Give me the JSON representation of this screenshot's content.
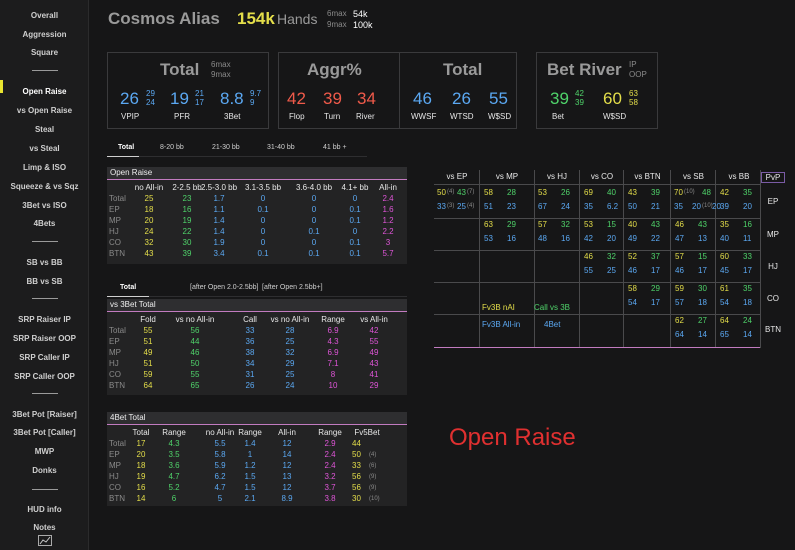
{
  "sidebar": {
    "items": [
      "Overall",
      "Aggression",
      "Square",
      "Open Raise",
      "vs Open Raise",
      "Steal",
      "vs Steal",
      "Limp & ISO",
      "Squeeze & vs Sqz",
      "3Bet vs ISO",
      "4Bets",
      "SB vs BB",
      "BB vs SB",
      "SRP Raiser IP",
      "SRP Raiser OOP",
      "SRP Caller IP",
      "SRP Caller OOP",
      "3Bet Pot [Raiser]",
      "3Bet Pot [Caller]",
      "MWP",
      "Donks",
      "HUD info",
      "Notes"
    ],
    "active": "Open Raise",
    "chart_icon": "line-chart-icon"
  },
  "header": {
    "player": "Cosmos Alias",
    "hands_value": "154k",
    "hands_label": "Hands",
    "sixmax_label": "6max",
    "sixmax_value": "54k",
    "ninemax_label": "9max",
    "ninemax_value": "100k"
  },
  "boxes": {
    "total1": {
      "title": "Total",
      "sub1": "6max",
      "sub2": "9max",
      "vpip": {
        "big": "26",
        "s1": "29",
        "s2": "24",
        "label": "VPIP"
      },
      "pfr": {
        "big": "19",
        "s1": "21",
        "s2": "17",
        "label": "PFR"
      },
      "threebet": {
        "big": "8.8",
        "s1": "9.7",
        "s2": "9",
        "label": "3Bet"
      }
    },
    "aggr": {
      "title": "Aggr%",
      "flop": {
        "big": "42",
        "label": "Flop"
      },
      "turn": {
        "big": "39",
        "label": "Turn"
      },
      "river": {
        "big": "34",
        "label": "River"
      }
    },
    "total2": {
      "title": "Total",
      "wwsf": {
        "big": "46",
        "label": "WWSF"
      },
      "wtsd": {
        "big": "26",
        "label": "WTSD"
      },
      "wsd": {
        "big": "55",
        "label": "W$SD"
      }
    },
    "betriver": {
      "title": "Bet River",
      "sub1": "IP",
      "sub2": "OOP",
      "bet": {
        "big": "39",
        "s1": "42",
        "s2": "39",
        "label": "Bet"
      },
      "wsd": {
        "big": "60",
        "s1": "63",
        "s2": "58",
        "label": "W$SD"
      }
    }
  },
  "tabs1": [
    "Total",
    "8-20 bb",
    "21-30 bb",
    "31-40 bb",
    "41 bb +"
  ],
  "open_raise": {
    "title": "Open Raise",
    "headers": [
      "no All-in",
      "2-2.5 bb",
      "2.5-3.0 bb",
      "3.1-3.5 bb",
      "3.6-4.0 bb",
      "4.1+ bb",
      "All-in"
    ],
    "rows": [
      {
        "pos": "Total",
        "v": [
          "25",
          "23",
          "1.7",
          "0",
          "0",
          "0",
          "2.4"
        ]
      },
      {
        "pos": "EP",
        "v": [
          "18",
          "16",
          "1.1",
          "0.1",
          "0",
          "0.1",
          "1.6"
        ]
      },
      {
        "pos": "MP",
        "v": [
          "20",
          "19",
          "1.4",
          "0",
          "0",
          "0.1",
          "1.2"
        ]
      },
      {
        "pos": "HJ",
        "v": [
          "24",
          "22",
          "1.4",
          "0",
          "0.1",
          "0",
          "2.2"
        ]
      },
      {
        "pos": "CO",
        "v": [
          "32",
          "30",
          "1.9",
          "0",
          "0",
          "0.1",
          "3"
        ]
      },
      {
        "pos": "BTN",
        "v": [
          "43",
          "39",
          "3.4",
          "0.1",
          "0.1",
          "0.1",
          "5.7"
        ]
      }
    ]
  },
  "tabs2": [
    "Total",
    "[after Open 2.0-2.5bb]",
    "[after Open 2.5bb+]"
  ],
  "vs3bet": {
    "title": "vs 3Bet Total",
    "headers": [
      "Fold",
      "vs no All-in",
      "Call",
      "vs no All-in",
      "Range",
      "vs All-in"
    ],
    "rows": [
      {
        "pos": "Total",
        "v": [
          "55",
          "56",
          "33",
          "28",
          "6.9",
          "42"
        ]
      },
      {
        "pos": "EP",
        "v": [
          "51",
          "44",
          "36",
          "25",
          "4.3",
          "55"
        ]
      },
      {
        "pos": "MP",
        "v": [
          "49",
          "46",
          "38",
          "32",
          "6.9",
          "49"
        ]
      },
      {
        "pos": "HJ",
        "v": [
          "51",
          "50",
          "34",
          "29",
          "7.1",
          "43"
        ]
      },
      {
        "pos": "CO",
        "v": [
          "59",
          "55",
          "31",
          "25",
          "8",
          "41"
        ]
      },
      {
        "pos": "BTN",
        "v": [
          "64",
          "65",
          "26",
          "24",
          "10",
          "29"
        ]
      }
    ]
  },
  "fourbet": {
    "title": "4Bet Total",
    "headers": [
      "Total",
      "Range",
      "no All-in",
      "Range",
      "All-in",
      "Range",
      "Fv5Bet"
    ],
    "rows": [
      {
        "pos": "Total",
        "v": [
          "17",
          "4.3",
          "5.5",
          "1.4",
          "12",
          "2.9",
          "44",
          ""
        ]
      },
      {
        "pos": "EP",
        "v": [
          "20",
          "3.5",
          "5.8",
          "1",
          "14",
          "2.4",
          "50",
          "(4)"
        ]
      },
      {
        "pos": "MP",
        "v": [
          "18",
          "3.6",
          "5.9",
          "1.2",
          "12",
          "2.4",
          "33",
          "(6)"
        ]
      },
      {
        "pos": "HJ",
        "v": [
          "19",
          "4.7",
          "6.2",
          "1.5",
          "13",
          "3.2",
          "56",
          "(9)"
        ]
      },
      {
        "pos": "CO",
        "v": [
          "16",
          "5.2",
          "4.7",
          "1.5",
          "12",
          "3.7",
          "56",
          "(9)"
        ]
      },
      {
        "pos": "BTN",
        "v": [
          "14",
          "6",
          "5",
          "2.1",
          "8.9",
          "3.8",
          "30",
          "(10)"
        ]
      }
    ]
  },
  "pvp": {
    "cols": [
      "vs EP",
      "vs MP",
      "vs HJ",
      "vs CO",
      "vs BTN",
      "vs SB",
      "vs BB"
    ],
    "corner": "PvP",
    "rows": [
      "EP",
      "MP",
      "HJ",
      "CO",
      "BTN"
    ],
    "cells": {
      "ep_ep": [
        "50",
        "(4)",
        "43",
        "(7)",
        "33",
        "(3)",
        "25",
        "(4)"
      ],
      "ep_mp": [
        "58",
        "28",
        "51",
        "23"
      ],
      "ep_hj": [
        "53",
        "26",
        "67",
        "24"
      ],
      "ep_co": [
        "69",
        "40",
        "35",
        "6.2"
      ],
      "ep_btn": [
        "43",
        "39",
        "50",
        "21"
      ],
      "ep_sb": [
        "70",
        "(10)",
        "48",
        "35",
        "20",
        "(10)",
        "20"
      ],
      "ep_bb": [
        "42",
        "35",
        "39",
        "20"
      ],
      "mp_mp": [
        "63",
        "29",
        "53",
        "16"
      ],
      "mp_hj": [
        "57",
        "32",
        "48",
        "16"
      ],
      "mp_co": [
        "53",
        "15",
        "42",
        "20"
      ],
      "mp_btn": [
        "40",
        "43",
        "49",
        "22"
      ],
      "mp_sb": [
        "46",
        "43",
        "47",
        "13"
      ],
      "mp_bb": [
        "35",
        "16",
        "40",
        "11"
      ],
      "hj_co": [
        "46",
        "32",
        "55",
        "25"
      ],
      "hj_btn": [
        "52",
        "37",
        "46",
        "17"
      ],
      "hj_sb": [
        "57",
        "15",
        "46",
        "17"
      ],
      "hj_bb": [
        "60",
        "33",
        "45",
        "17"
      ],
      "co_btn": [
        "58",
        "29",
        "54",
        "17"
      ],
      "co_sb": [
        "59",
        "30",
        "57",
        "18"
      ],
      "co_bb": [
        "61",
        "35",
        "54",
        "18"
      ],
      "btn_sb": [
        "62",
        "27",
        "64",
        "14"
      ],
      "btn_bb": [
        "64",
        "24",
        "65",
        "14"
      ]
    },
    "legend": [
      "Fv3B nAI",
      "Call vs 3B",
      "Fv3B All-in",
      "4Bet"
    ]
  },
  "caption": "Open Raise"
}
